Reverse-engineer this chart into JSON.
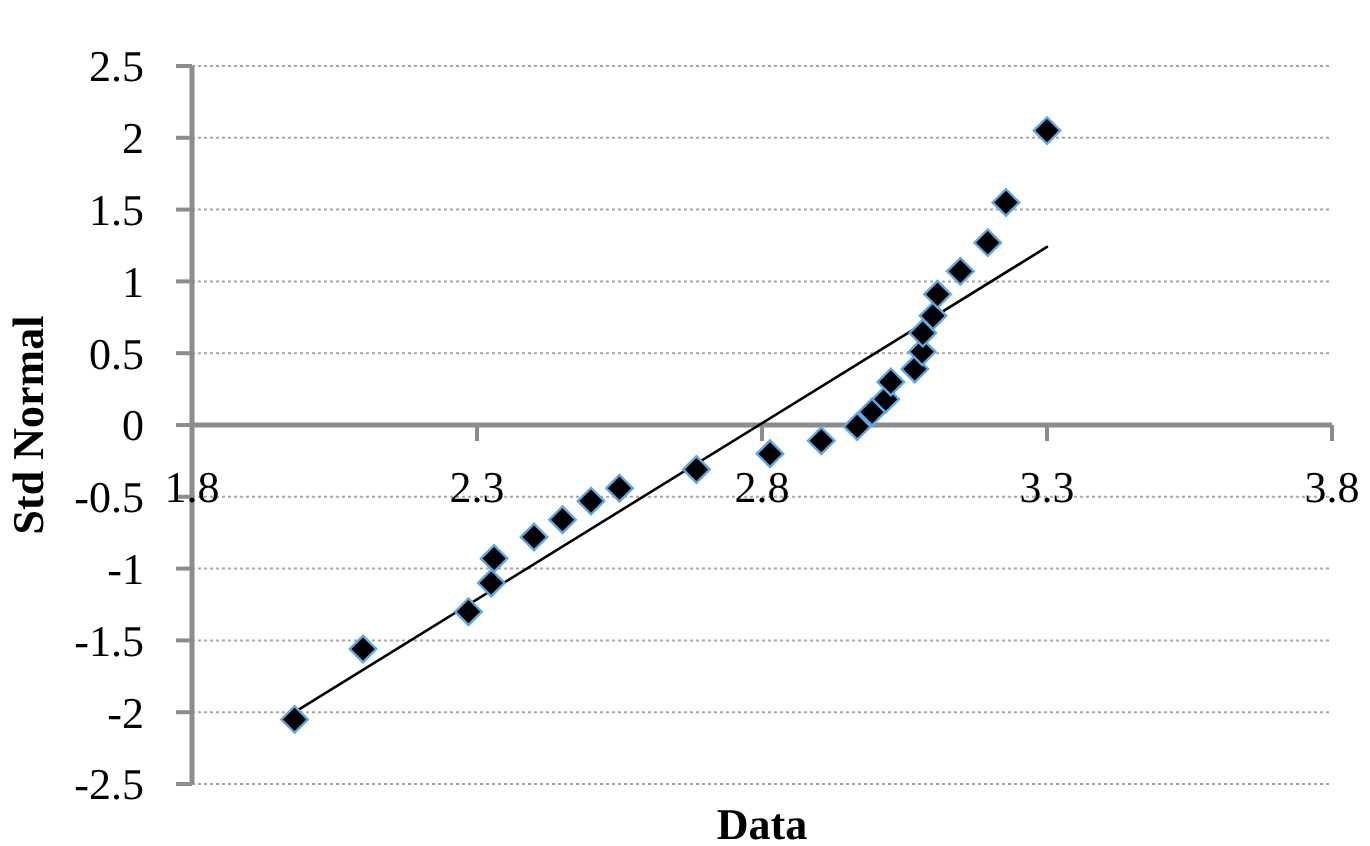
{
  "chart_data": {
    "type": "scatter",
    "xlabel": "Data",
    "ylabel": "Std Normal",
    "xlim": [
      1.8,
      3.8
    ],
    "xticks": [
      1.8,
      2.3,
      2.8,
      3.3,
      3.8
    ],
    "ylim": [
      -2.5,
      2.5
    ],
    "yticks": [
      -2.5,
      -2,
      -1.5,
      -1,
      -0.5,
      0,
      0.5,
      1,
      1.5,
      2,
      2.5
    ],
    "grid": "y",
    "series": [
      {
        "color": "#000000",
        "marker": "diamond",
        "x": [
          1.98,
          2.1,
          2.285,
          2.325,
          2.33,
          2.4,
          2.45,
          2.5,
          2.55,
          2.685,
          2.814,
          2.904,
          2.967,
          2.993,
          3.017,
          3.026,
          3.068,
          3.081,
          3.082,
          3.1,
          3.108,
          3.148,
          3.196,
          3.228,
          3.3
        ],
        "values": [
          -2.05,
          -1.56,
          -1.3,
          -1.1,
          -0.93,
          -0.78,
          -0.66,
          -0.53,
          -0.44,
          -0.31,
          -0.2,
          -0.11,
          -0.01,
          0.09,
          0.18,
          0.3,
          0.39,
          0.51,
          0.64,
          0.76,
          0.91,
          1.07,
          1.27,
          1.55,
          2.05
        ]
      },
      {
        "type": "line",
        "color": "#000000",
        "marker": "none",
        "line_style": "solid",
        "x": [
          1.98,
          3.3
        ],
        "values": [
          -2.0,
          1.24
        ]
      }
    ]
  }
}
